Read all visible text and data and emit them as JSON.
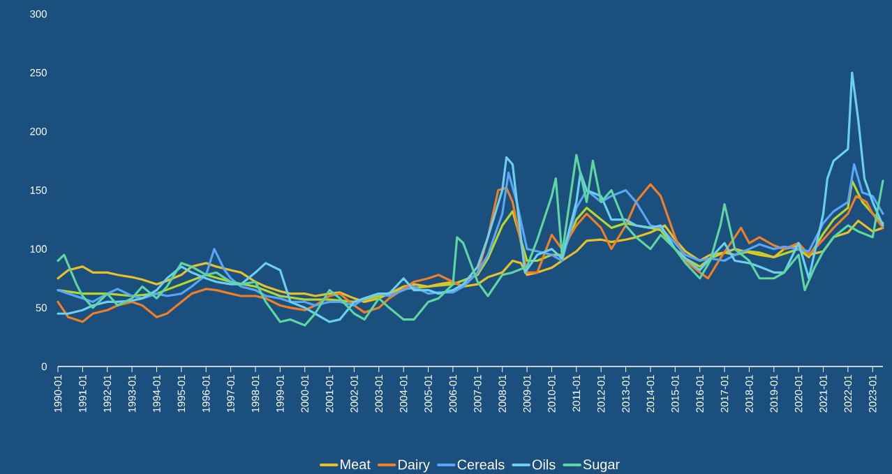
{
  "chart_data": {
    "type": "line",
    "xlim": [
      "1990-01",
      "2023-06"
    ],
    "ylim": [
      0,
      300
    ],
    "yticks": [
      0,
      50,
      100,
      150,
      200,
      250,
      300
    ],
    "xticks": [
      "1990-01",
      "1991-01",
      "1992-01",
      "1993-01",
      "1994-01",
      "1995-01",
      "1996-01",
      "1997-01",
      "1998-01",
      "1999-01",
      "2000-01",
      "2001-01",
      "2002-01",
      "2003-01",
      "2004-01",
      "2005-01",
      "2006-01",
      "2007-01",
      "2008-01",
      "2009-01",
      "2010-01",
      "2011-01",
      "2012-01",
      "2013-01",
      "2014-01",
      "2015-01",
      "2016-01",
      "2017-01",
      "2018-01",
      "2019-01",
      "2020-01",
      "2021-01",
      "2022-01",
      "2023-01"
    ],
    "grid": false,
    "legend": "bottom",
    "marker": "none",
    "line_style": "solid",
    "series": [
      {
        "color": "#b5d62a",
        "x": [
          "1990-01",
          "1991-01",
          "1992-01",
          "1993-01",
          "1994-01",
          "1995-01",
          "1996-01",
          "1997-01",
          "1998-01",
          "1999-01",
          "2000-01",
          "2001-01",
          "2002-01",
          "2003-01",
          "2004-01",
          "2005-01",
          "2006-01",
          "2007-01",
          "2007-06",
          "2008-01",
          "2008-06",
          "2009-01",
          "2009-06",
          "2010-01",
          "2010-06",
          "2011-01",
          "2011-06",
          "2012-01",
          "2012-06",
          "2013-01",
          "2013-06",
          "2014-01",
          "2014-06",
          "2015-01",
          "2015-06",
          "2016-01",
          "2016-06",
          "2017-01",
          "2017-06",
          "2018-01",
          "2018-06",
          "2019-01",
          "2019-06",
          "2020-01",
          "2020-06",
          "2021-01",
          "2021-06",
          "2022-01",
          "2022-03",
          "2022-08",
          "2023-01",
          "2023-06"
        ],
        "values": [
          65,
          62,
          62,
          60,
          62,
          70,
          78,
          72,
          68,
          60,
          57,
          57,
          55,
          60,
          66,
          68,
          70,
          78,
          92,
          120,
          132,
          90,
          90,
          95,
          95,
          125,
          135,
          125,
          118,
          122,
          120,
          118,
          116,
          100,
          92,
          85,
          92,
          97,
          95,
          98,
          97,
          93,
          96,
          100,
          93,
          113,
          125,
          135,
          158,
          140,
          130,
          122
        ]
      },
      {
        "name": "Meat",
        "color": "#e8c02a",
        "x": [
          "1990-01",
          "1990-06",
          "1991-01",
          "1991-06",
          "1992-01",
          "1992-06",
          "1993-01",
          "1993-06",
          "1994-01",
          "1994-06",
          "1995-01",
          "1995-06",
          "1996-01",
          "1996-06",
          "1997-01",
          "1997-06",
          "1998-01",
          "1998-06",
          "1999-01",
          "1999-06",
          "2000-01",
          "2000-06",
          "2001-01",
          "2001-06",
          "2002-01",
          "2002-06",
          "2003-01",
          "2003-06",
          "2004-01",
          "2004-06",
          "2005-01",
          "2005-06",
          "2006-01",
          "2006-06",
          "2007-01",
          "2007-06",
          "2008-01",
          "2008-06",
          "2008-10",
          "2009-01",
          "2009-06",
          "2010-01",
          "2010-06",
          "2011-01",
          "2011-06",
          "2012-01",
          "2012-06",
          "2013-01",
          "2013-06",
          "2014-01",
          "2014-08",
          "2015-01",
          "2015-06",
          "2016-01",
          "2016-06",
          "2017-01",
          "2017-06",
          "2018-01",
          "2018-06",
          "2019-01",
          "2019-06",
          "2020-01",
          "2020-06",
          "2021-01",
          "2021-06",
          "2022-01",
          "2022-06",
          "2023-01",
          "2023-06"
        ],
        "values": [
          75,
          82,
          85,
          80,
          80,
          78,
          76,
          74,
          70,
          73,
          78,
          85,
          88,
          85,
          82,
          80,
          72,
          68,
          64,
          62,
          62,
          60,
          62,
          63,
          58,
          55,
          58,
          62,
          68,
          70,
          68,
          70,
          72,
          68,
          70,
          76,
          80,
          90,
          88,
          78,
          80,
          84,
          90,
          98,
          107,
          108,
          106,
          108,
          110,
          114,
          120,
          108,
          98,
          90,
          95,
          97,
          100,
          97,
          95,
          93,
          100,
          103,
          95,
          98,
          110,
          114,
          124,
          115,
          118
        ]
      },
      {
        "name": "Dairy",
        "color": "#f07f25",
        "x": [
          "1990-01",
          "1990-06",
          "1991-01",
          "1991-06",
          "1992-01",
          "1992-06",
          "1993-01",
          "1993-06",
          "1994-01",
          "1994-06",
          "1995-01",
          "1995-06",
          "1996-01",
          "1996-06",
          "1997-01",
          "1997-06",
          "1998-01",
          "1998-06",
          "1999-01",
          "1999-06",
          "2000-01",
          "2000-06",
          "2001-01",
          "2001-06",
          "2002-01",
          "2002-06",
          "2003-01",
          "2003-06",
          "2004-01",
          "2004-06",
          "2005-01",
          "2005-06",
          "2006-01",
          "2006-06",
          "2007-01",
          "2007-06",
          "2007-11",
          "2008-03",
          "2008-06",
          "2009-01",
          "2009-06",
          "2010-01",
          "2010-06",
          "2011-01",
          "2011-06",
          "2012-01",
          "2012-06",
          "2013-01",
          "2013-06",
          "2014-01",
          "2014-06",
          "2015-01",
          "2015-06",
          "2016-01",
          "2016-05",
          "2016-12",
          "2017-06",
          "2017-09",
          "2018-01",
          "2018-06",
          "2019-01",
          "2019-06",
          "2020-01",
          "2020-06",
          "2021-01",
          "2021-06",
          "2022-01",
          "2022-05",
          "2022-10",
          "2023-01",
          "2023-06"
        ],
        "values": [
          55,
          42,
          38,
          45,
          48,
          52,
          55,
          52,
          42,
          45,
          55,
          62,
          66,
          65,
          62,
          60,
          60,
          58,
          52,
          50,
          48,
          52,
          60,
          62,
          52,
          46,
          50,
          58,
          66,
          72,
          75,
          78,
          72,
          68,
          80,
          110,
          150,
          152,
          140,
          80,
          80,
          112,
          100,
          120,
          130,
          118,
          100,
          120,
          140,
          155,
          145,
          110,
          90,
          80,
          75,
          95,
          110,
          118,
          105,
          110,
          103,
          100,
          105,
          95,
          108,
          118,
          130,
          145,
          140,
          130,
          118
        ]
      },
      {
        "name": "Cereals",
        "color": "#5aa5f5",
        "x": [
          "1990-01",
          "1990-06",
          "1991-01",
          "1991-06",
          "1992-01",
          "1992-06",
          "1993-01",
          "1993-06",
          "1994-01",
          "1994-06",
          "1995-01",
          "1995-06",
          "1996-01",
          "1996-05",
          "1996-10",
          "1997-01",
          "1997-06",
          "1998-01",
          "1998-06",
          "1999-01",
          "1999-06",
          "2000-01",
          "2000-06",
          "2001-01",
          "2001-06",
          "2002-01",
          "2002-06",
          "2003-01",
          "2003-06",
          "2004-01",
          "2004-06",
          "2005-01",
          "2005-06",
          "2006-01",
          "2006-06",
          "2007-01",
          "2007-06",
          "2008-01",
          "2008-04",
          "2008-08",
          "2009-01",
          "2009-06",
          "2010-01",
          "2010-06",
          "2011-01",
          "2011-06",
          "2012-01",
          "2012-06",
          "2013-01",
          "2013-06",
          "2014-01",
          "2014-06",
          "2015-01",
          "2015-06",
          "2016-01",
          "2016-06",
          "2017-01",
          "2017-06",
          "2018-01",
          "2018-06",
          "2019-01",
          "2019-06",
          "2020-01",
          "2020-06",
          "2021-01",
          "2021-06",
          "2022-01",
          "2022-04",
          "2022-08",
          "2023-01",
          "2023-06"
        ],
        "values": [
          65,
          62,
          58,
          55,
          62,
          66,
          60,
          58,
          62,
          60,
          62,
          68,
          78,
          100,
          82,
          75,
          68,
          65,
          60,
          58,
          55,
          55,
          52,
          55,
          55,
          52,
          58,
          62,
          60,
          65,
          68,
          62,
          63,
          63,
          68,
          80,
          95,
          130,
          165,
          140,
          100,
          98,
          95,
          90,
          135,
          150,
          140,
          145,
          150,
          140,
          120,
          118,
          105,
          95,
          90,
          92,
          90,
          95,
          100,
          104,
          100,
          102,
          100,
          98,
          122,
          132,
          140,
          172,
          148,
          145,
          130
        ]
      },
      {
        "name": "Oils",
        "color": "#6dcfef",
        "x": [
          "1990-01",
          "1990-06",
          "1991-01",
          "1991-06",
          "1992-01",
          "1992-06",
          "1993-01",
          "1993-06",
          "1994-01",
          "1994-06",
          "1995-01",
          "1995-06",
          "1996-01",
          "1996-06",
          "1997-01",
          "1997-06",
          "1998-01",
          "1998-06",
          "1999-01",
          "1999-06",
          "2000-01",
          "2000-06",
          "2001-01",
          "2001-06",
          "2002-01",
          "2002-06",
          "2003-01",
          "2003-06",
          "2004-01",
          "2004-06",
          "2005-01",
          "2005-06",
          "2006-01",
          "2006-06",
          "2007-01",
          "2007-06",
          "2008-01",
          "2008-03",
          "2008-06",
          "2008-12",
          "2009-06",
          "2010-01",
          "2010-06",
          "2011-01",
          "2011-03",
          "2011-06",
          "2012-01",
          "2012-06",
          "2013-01",
          "2013-06",
          "2014-01",
          "2014-06",
          "2015-01",
          "2015-06",
          "2016-01",
          "2016-06",
          "2017-01",
          "2017-06",
          "2018-01",
          "2018-06",
          "2019-01",
          "2019-06",
          "2020-01",
          "2020-06",
          "2021-01",
          "2021-03",
          "2021-06",
          "2022-01",
          "2022-03",
          "2022-06",
          "2022-09",
          "2023-01",
          "2023-06"
        ],
        "values": [
          45,
          45,
          48,
          52,
          55,
          55,
          56,
          58,
          65,
          75,
          85,
          80,
          75,
          72,
          70,
          70,
          80,
          88,
          82,
          55,
          50,
          45,
          38,
          40,
          55,
          58,
          62,
          62,
          75,
          65,
          65,
          62,
          65,
          70,
          85,
          110,
          150,
          178,
          172,
          80,
          95,
          100,
          92,
          140,
          165,
          150,
          145,
          125,
          125,
          120,
          118,
          120,
          100,
          92,
          82,
          92,
          105,
          90,
          88,
          85,
          80,
          80,
          105,
          75,
          130,
          160,
          175,
          185,
          250,
          210,
          160,
          140,
          120
        ]
      },
      {
        "name": "Sugar",
        "color": "#5fd6a0",
        "x": [
          "1990-01",
          "1990-04",
          "1990-10",
          "1991-01",
          "1991-06",
          "1992-01",
          "1992-06",
          "1993-01",
          "1993-06",
          "1994-01",
          "1994-06",
          "1995-01",
          "1995-06",
          "1996-01",
          "1996-06",
          "1997-01",
          "1997-06",
          "1998-01",
          "1998-06",
          "1999-01",
          "1999-06",
          "2000-01",
          "2000-06",
          "2001-01",
          "2001-06",
          "2002-01",
          "2002-06",
          "2003-01",
          "2003-06",
          "2004-01",
          "2004-06",
          "2005-01",
          "2005-06",
          "2006-01",
          "2006-03",
          "2006-06",
          "2007-01",
          "2007-06",
          "2008-01",
          "2008-06",
          "2009-01",
          "2009-06",
          "2010-01",
          "2010-03",
          "2010-06",
          "2011-01",
          "2011-06",
          "2011-09",
          "2012-01",
          "2012-06",
          "2013-01",
          "2013-06",
          "2014-01",
          "2014-06",
          "2015-01",
          "2015-06",
          "2016-01",
          "2016-06",
          "2016-11",
          "2017-01",
          "2017-06",
          "2018-01",
          "2018-06",
          "2019-01",
          "2019-06",
          "2020-01",
          "2020-04",
          "2020-09",
          "2021-01",
          "2021-06",
          "2022-01",
          "2022-06",
          "2023-01",
          "2023-06"
        ],
        "values": [
          90,
          95,
          70,
          60,
          50,
          62,
          52,
          58,
          68,
          58,
          68,
          88,
          85,
          78,
          80,
          72,
          70,
          72,
          55,
          38,
          40,
          35,
          45,
          65,
          58,
          45,
          40,
          58,
          50,
          40,
          40,
          55,
          58,
          70,
          110,
          105,
          72,
          60,
          78,
          80,
          85,
          108,
          145,
          160,
          95,
          180,
          140,
          175,
          140,
          150,
          120,
          110,
          100,
          112,
          100,
          88,
          75,
          90,
          120,
          138,
          100,
          90,
          75,
          75,
          80,
          95,
          65,
          85,
          98,
          110,
          120,
          115,
          110,
          158
        ]
      }
    ]
  }
}
